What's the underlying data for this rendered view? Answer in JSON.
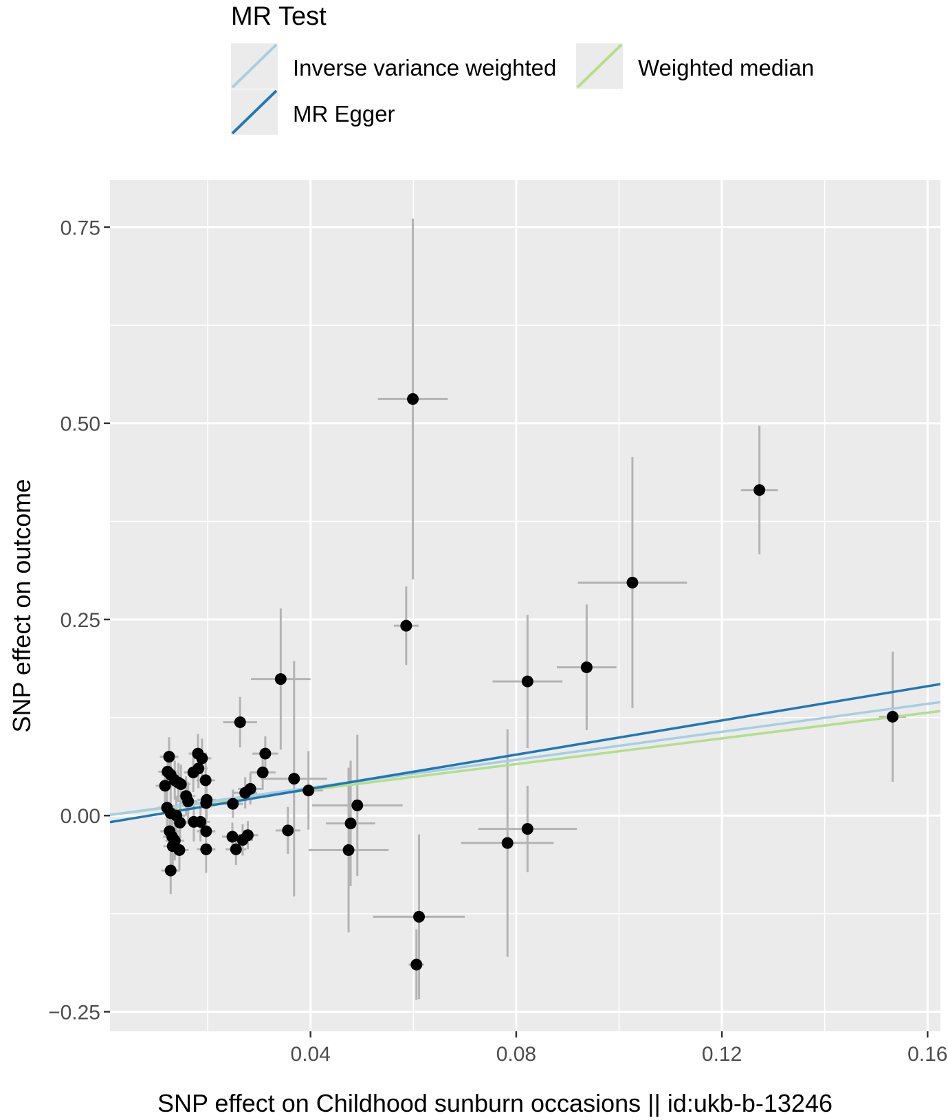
{
  "chart_data": {
    "type": "scatter",
    "xlabel": "SNP effect on Childhood sunburn occasions || id:ukb-b-13246",
    "ylabel": "SNP effect on outcome",
    "xlim": [
      0.001,
      0.1625
    ],
    "ylim": [
      -0.275,
      0.81
    ],
    "x_ticks": [
      0.04,
      0.08,
      0.12,
      0.16
    ],
    "x_tick_labels": [
      "0.04",
      "0.08",
      "0.12",
      "0.16"
    ],
    "y_ticks": [
      -0.25,
      0.0,
      0.25,
      0.5,
      0.75
    ],
    "y_tick_labels": [
      "−0.25",
      "0.00",
      "0.25",
      "0.50",
      "0.75"
    ],
    "grid": true,
    "background": "#ebebeb",
    "legend": {
      "title": "MR Test",
      "position": "top",
      "entries": [
        {
          "label": "Inverse variance weighted",
          "color": "#a6cee3"
        },
        {
          "label": "MR Egger",
          "color": "#1f78b4"
        },
        {
          "label": "Weighted median",
          "color": "#b2df8a"
        }
      ]
    },
    "lines": [
      {
        "name": "MR Egger",
        "color": "#1f78b4",
        "intercept": -0.0095,
        "slope": 1.09
      },
      {
        "name": "Inverse variance weighted",
        "color": "#a6cee3",
        "intercept": 0.0,
        "slope": 0.89
      },
      {
        "name": "Weighted median",
        "color": "#b2df8a",
        "intercept": 0.0,
        "slope": 0.82
      }
    ],
    "point_color": "#000000",
    "errorbar_color": "#b3b3b3",
    "points": [
      {
        "x": 0.0599,
        "y": 0.531,
        "xerr": 0.0068,
        "yerr": 0.23
      },
      {
        "x": 0.0586,
        "y": 0.242,
        "xerr": 0.0024,
        "yerr": 0.05
      },
      {
        "x": 0.1273,
        "y": 0.415,
        "xerr": 0.0036,
        "yerr": 0.082
      },
      {
        "x": 0.1026,
        "y": 0.297,
        "xerr": 0.0106,
        "yerr": 0.16
      },
      {
        "x": 0.0937,
        "y": 0.189,
        "xerr": 0.0058,
        "yerr": 0.08
      },
      {
        "x": 0.0822,
        "y": 0.171,
        "xerr": 0.0068,
        "yerr": 0.085
      },
      {
        "x": 0.1532,
        "y": 0.126,
        "xerr": 0.0026,
        "yerr": 0.083
      },
      {
        "x": 0.0342,
        "y": 0.174,
        "xerr": 0.0058,
        "yerr": 0.09
      },
      {
        "x": 0.0263,
        "y": 0.119,
        "xerr": 0.0033,
        "yerr": 0.032
      },
      {
        "x": 0.0312,
        "y": 0.079,
        "xerr": 0.0025,
        "yerr": 0.022
      },
      {
        "x": 0.0307,
        "y": 0.055,
        "xerr": 0.0025,
        "yerr": 0.022
      },
      {
        "x": 0.0368,
        "y": 0.047,
        "xerr": 0.0064,
        "yerr": 0.15
      },
      {
        "x": 0.0396,
        "y": 0.032,
        "xerr": 0.0028,
        "yerr": 0.05
      },
      {
        "x": 0.0491,
        "y": 0.013,
        "xerr": 0.0088,
        "yerr": 0.09
      },
      {
        "x": 0.0478,
        "y": -0.01,
        "xerr": 0.0048,
        "yerr": 0.08
      },
      {
        "x": 0.0474,
        "y": -0.044,
        "xerr": 0.0078,
        "yerr": 0.105
      },
      {
        "x": 0.0356,
        "y": -0.019,
        "xerr": 0.0024,
        "yerr": 0.03
      },
      {
        "x": 0.0783,
        "y": -0.035,
        "xerr": 0.009,
        "yerr": 0.145
      },
      {
        "x": 0.0822,
        "y": -0.017,
        "xerr": 0.0096,
        "yerr": 0.055
      },
      {
        "x": 0.0611,
        "y": -0.129,
        "xerr": 0.0089,
        "yerr": 0.105
      },
      {
        "x": 0.0606,
        "y": -0.19,
        "xerr": 0.0015,
        "yerr": 0.045
      },
      {
        "x": 0.0283,
        "y": 0.034,
        "xerr": 0.0024,
        "yerr": 0.02
      },
      {
        "x": 0.0273,
        "y": 0.029,
        "xerr": 0.0023,
        "yerr": 0.02
      },
      {
        "x": 0.0249,
        "y": 0.015,
        "xerr": 0.002,
        "yerr": 0.018
      },
      {
        "x": 0.0248,
        "y": -0.027,
        "xerr": 0.002,
        "yerr": 0.018
      },
      {
        "x": 0.0255,
        "y": -0.043,
        "xerr": 0.002,
        "yerr": 0.02
      },
      {
        "x": 0.0268,
        "y": -0.031,
        "xerr": 0.002,
        "yerr": 0.02
      },
      {
        "x": 0.0278,
        "y": -0.025,
        "xerr": 0.002,
        "yerr": 0.018
      },
      {
        "x": 0.0181,
        "y": 0.079,
        "xerr": 0.0018,
        "yerr": 0.025
      },
      {
        "x": 0.0189,
        "y": 0.073,
        "xerr": 0.0018,
        "yerr": 0.025
      },
      {
        "x": 0.0182,
        "y": 0.06,
        "xerr": 0.0018,
        "yerr": 0.025
      },
      {
        "x": 0.0172,
        "y": 0.055,
        "xerr": 0.0018,
        "yerr": 0.025
      },
      {
        "x": 0.0196,
        "y": 0.045,
        "xerr": 0.0018,
        "yerr": 0.025
      },
      {
        "x": 0.0198,
        "y": 0.02,
        "xerr": 0.0018,
        "yerr": 0.025
      },
      {
        "x": 0.0197,
        "y": 0.016,
        "xerr": 0.0018,
        "yerr": 0.025
      },
      {
        "x": 0.0197,
        "y": -0.02,
        "xerr": 0.0018,
        "yerr": 0.025
      },
      {
        "x": 0.0197,
        "y": -0.043,
        "xerr": 0.0018,
        "yerr": 0.03
      },
      {
        "x": 0.0186,
        "y": -0.008,
        "xerr": 0.0018,
        "yerr": 0.025
      },
      {
        "x": 0.0173,
        "y": -0.008,
        "xerr": 0.0018,
        "yerr": 0.025
      },
      {
        "x": 0.0158,
        "y": 0.025,
        "xerr": 0.0018,
        "yerr": 0.025
      },
      {
        "x": 0.0162,
        "y": 0.018,
        "xerr": 0.0018,
        "yerr": 0.025
      },
      {
        "x": 0.0148,
        "y": 0.04,
        "xerr": 0.0018,
        "yerr": 0.025
      },
      {
        "x": 0.0143,
        "y": 0.042,
        "xerr": 0.0018,
        "yerr": 0.025
      },
      {
        "x": 0.0136,
        "y": 0.045,
        "xerr": 0.0018,
        "yerr": 0.025
      },
      {
        "x": 0.0125,
        "y": 0.075,
        "xerr": 0.0018,
        "yerr": 0.025
      },
      {
        "x": 0.0122,
        "y": 0.056,
        "xerr": 0.0018,
        "yerr": 0.025
      },
      {
        "x": 0.0128,
        "y": 0.052,
        "xerr": 0.0018,
        "yerr": 0.025
      },
      {
        "x": 0.0117,
        "y": 0.038,
        "xerr": 0.0018,
        "yerr": 0.025
      },
      {
        "x": 0.0121,
        "y": 0.01,
        "xerr": 0.0018,
        "yerr": 0.025
      },
      {
        "x": 0.0128,
        "y": 0.003,
        "xerr": 0.0018,
        "yerr": 0.025
      },
      {
        "x": 0.0139,
        "y": 0.0,
        "xerr": 0.0018,
        "yerr": 0.025
      },
      {
        "x": 0.0146,
        "y": -0.009,
        "xerr": 0.0018,
        "yerr": 0.025
      },
      {
        "x": 0.0126,
        "y": -0.02,
        "xerr": 0.0018,
        "yerr": 0.025
      },
      {
        "x": 0.0131,
        "y": -0.027,
        "xerr": 0.0018,
        "yerr": 0.025
      },
      {
        "x": 0.0136,
        "y": -0.032,
        "xerr": 0.0018,
        "yerr": 0.025
      },
      {
        "x": 0.0132,
        "y": -0.039,
        "xerr": 0.0018,
        "yerr": 0.025
      },
      {
        "x": 0.0145,
        "y": -0.044,
        "xerr": 0.0018,
        "yerr": 0.025
      },
      {
        "x": 0.0128,
        "y": -0.07,
        "xerr": 0.0018,
        "yerr": 0.03
      }
    ]
  }
}
